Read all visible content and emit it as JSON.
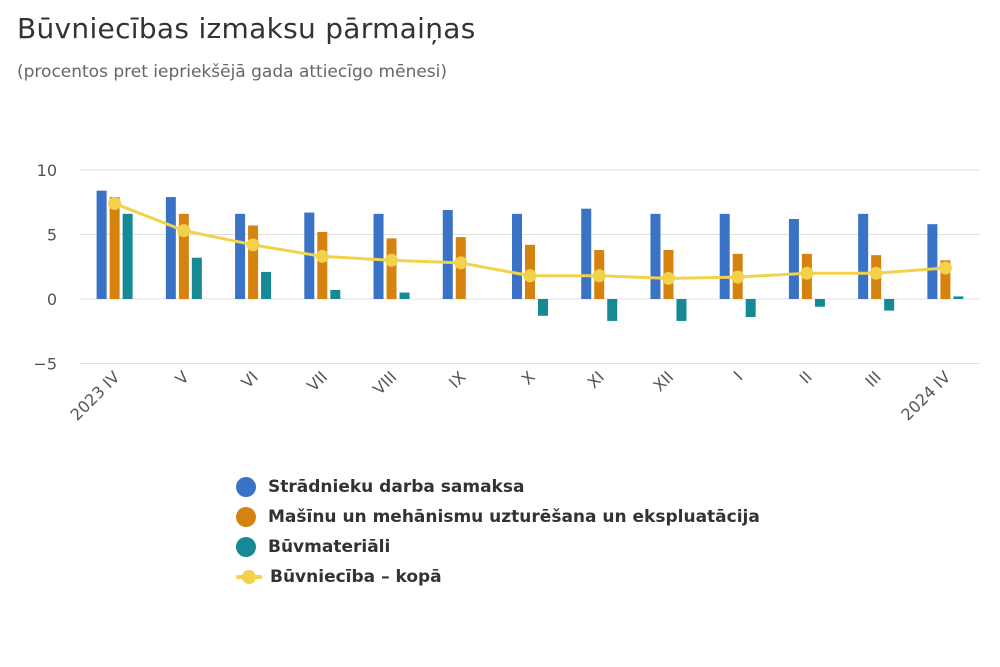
{
  "header": {
    "title": "Būvniecības izmaksu pārmaiņas",
    "subtitle": "(procentos pret iepriekšējā gada attiecīgo mēnesi)"
  },
  "colors": {
    "labour": "#3a72c6",
    "machinery": "#d6820f",
    "materials": "#158a94",
    "total": "#f2d24a",
    "grid": "#e0e0e0"
  },
  "chart_data": {
    "type": "bar",
    "title": "Būvniecības izmaksu pārmaiņas",
    "subtitle": "(procentos pret iepriekšējā gada attiecīgo mēnesi)",
    "categories": [
      "2023 IV",
      "V",
      "VI",
      "VII",
      "VIII",
      "IX",
      "X",
      "XI",
      "XII",
      "I",
      "II",
      "III",
      "2024 IV"
    ],
    "y_ticks": [
      10,
      5,
      0,
      -5
    ],
    "y_tick_labels": [
      "10",
      "5",
      "0",
      "−5"
    ],
    "ylim": [
      -5,
      10
    ],
    "grid": true,
    "legend_position": "bottom",
    "series": [
      {
        "name": "Strādnieku darba samaksa",
        "kind": "bar",
        "values": [
          8.4,
          7.9,
          6.6,
          6.7,
          6.6,
          6.9,
          6.6,
          7.0,
          6.6,
          6.6,
          6.2,
          6.6,
          5.8
        ]
      },
      {
        "name": "Mašīnu un mehānismu uzturēšana un ekspluatācija",
        "kind": "bar",
        "values": [
          7.9,
          6.6,
          5.7,
          5.2,
          4.7,
          4.8,
          4.2,
          3.8,
          3.8,
          3.5,
          3.5,
          3.4,
          3.0
        ]
      },
      {
        "name": "Būvmateriāli",
        "kind": "bar",
        "values": [
          6.6,
          3.2,
          2.1,
          0.7,
          0.5,
          0.0,
          -1.3,
          -1.7,
          -1.7,
          -1.4,
          -0.6,
          -0.9,
          0.2
        ]
      },
      {
        "name": "Būvniecība – kopā",
        "kind": "line",
        "values": [
          7.4,
          5.3,
          4.2,
          3.3,
          3.0,
          2.8,
          1.8,
          1.8,
          1.6,
          1.7,
          2.0,
          2.0,
          2.4
        ]
      }
    ]
  }
}
